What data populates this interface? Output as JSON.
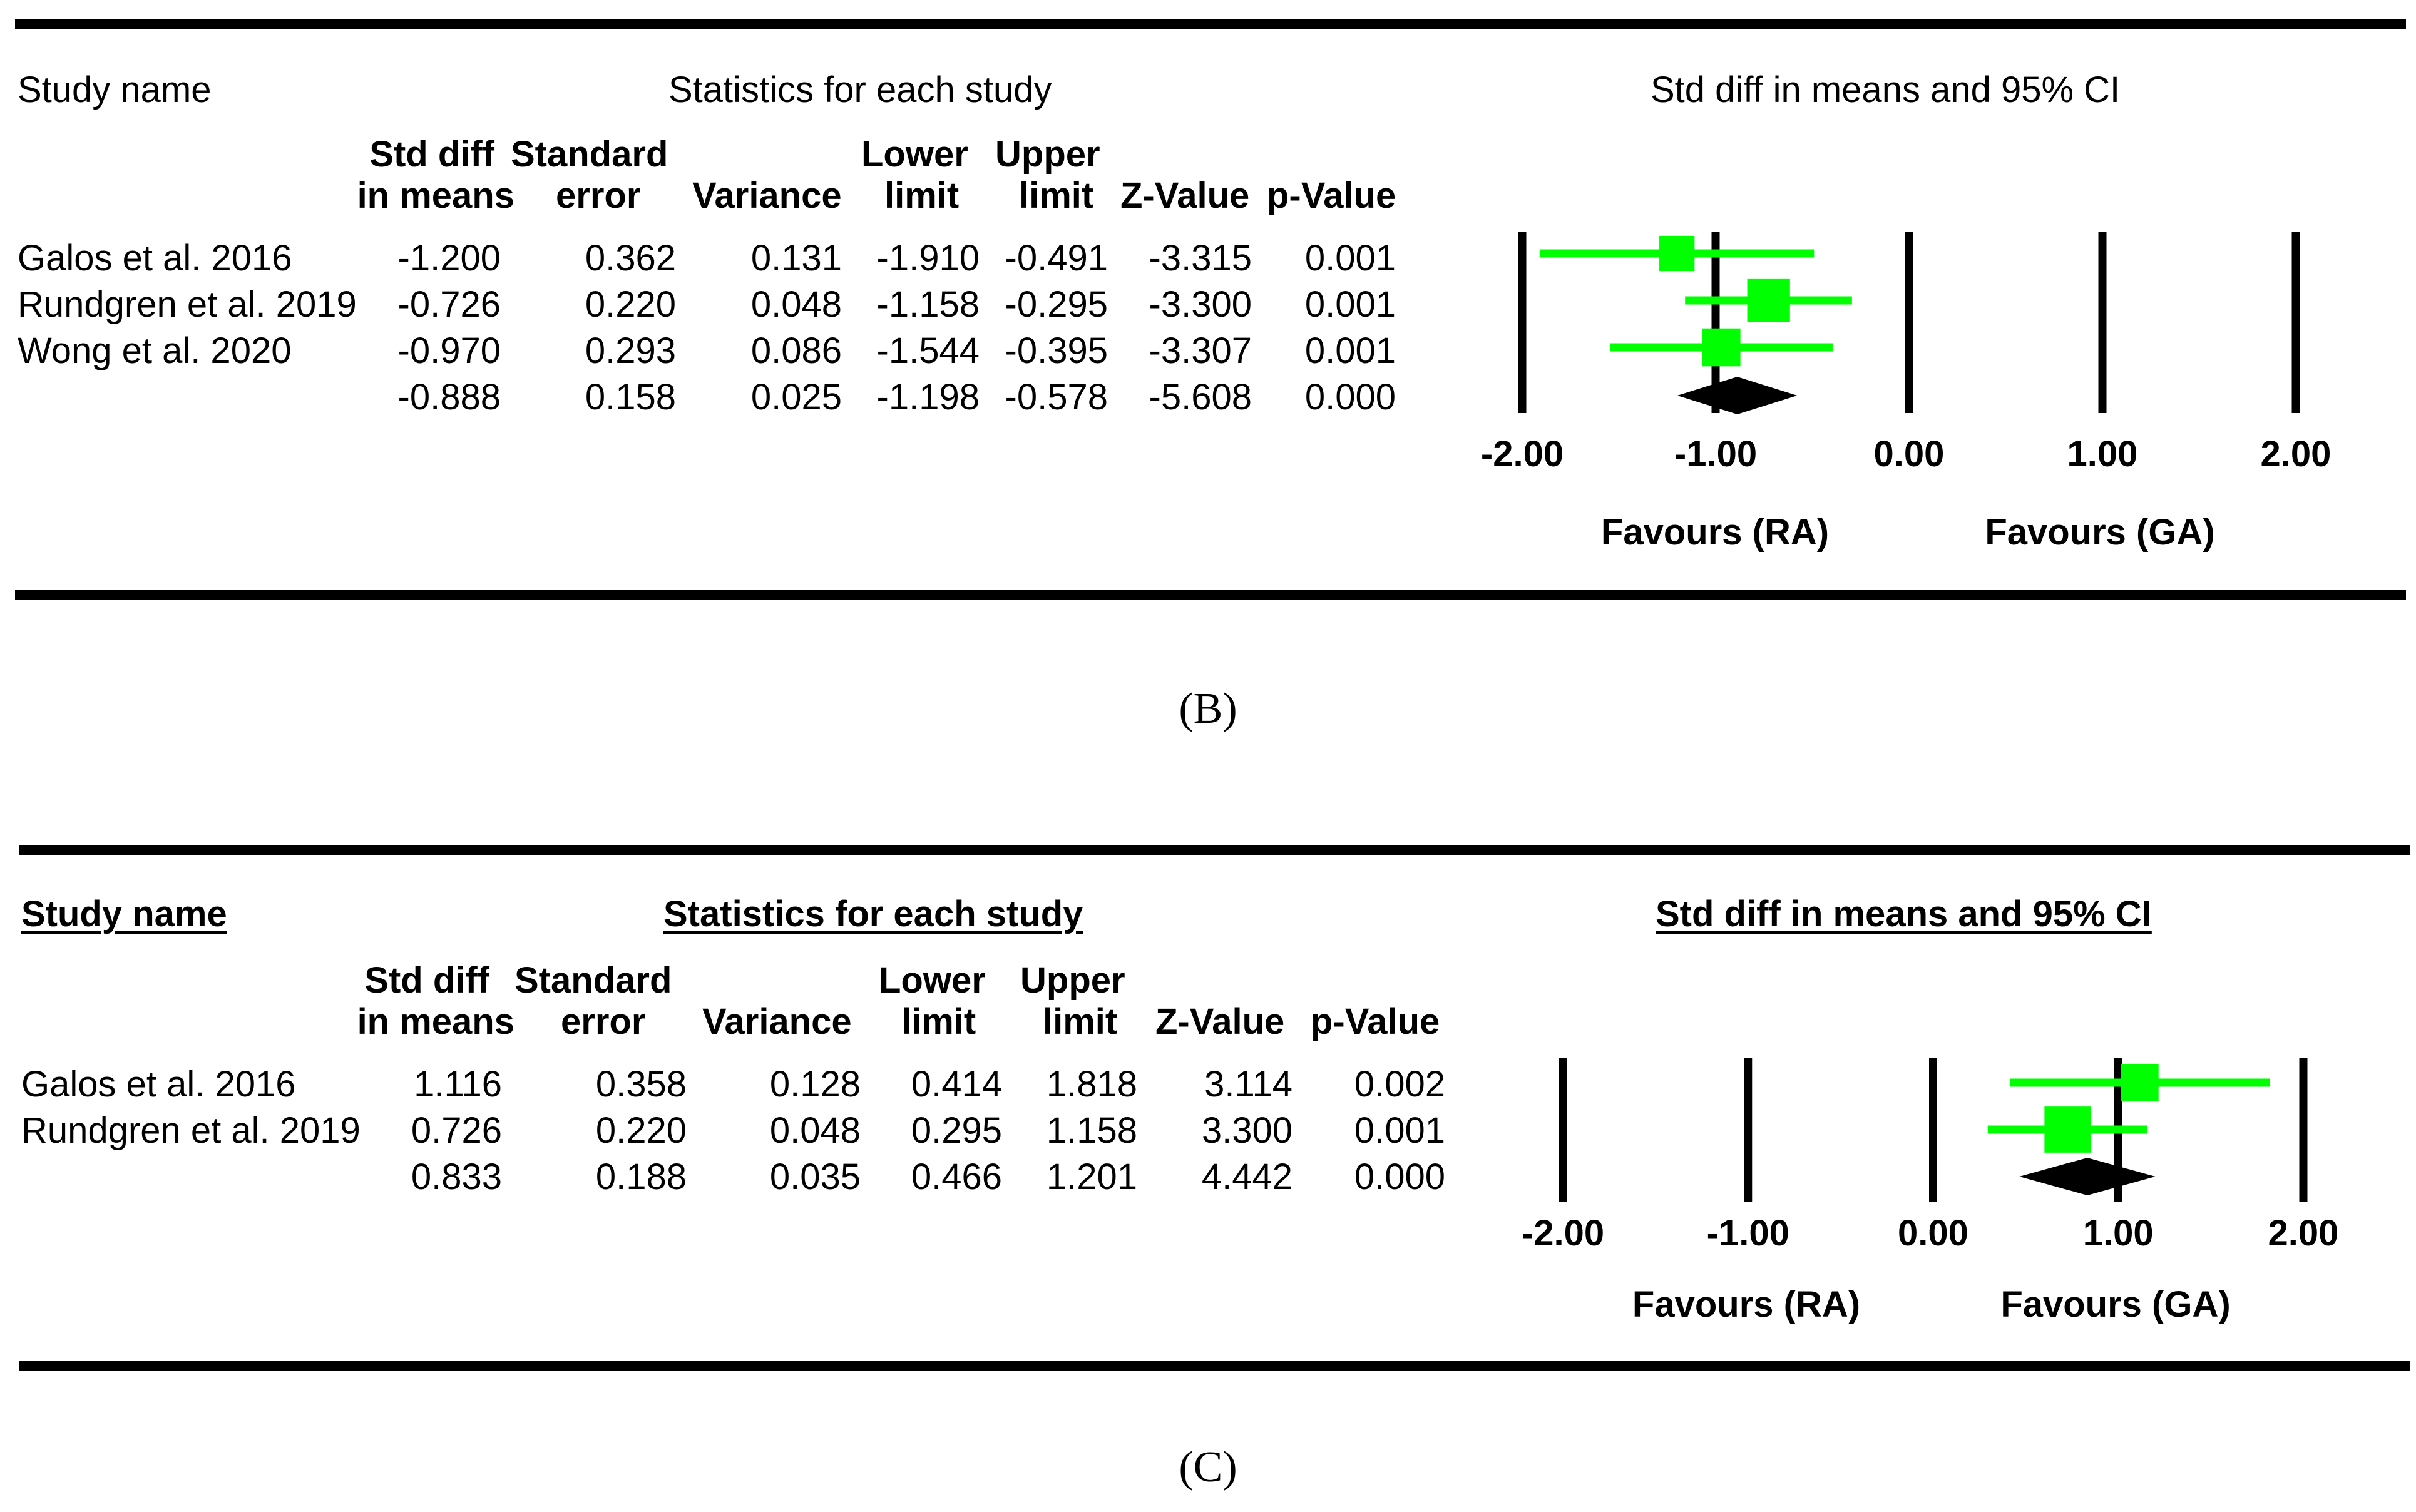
{
  "panels": [
    {
      "id": "B",
      "headers": {
        "study_name": "Study name",
        "stats_title": "Statistics for each study",
        "plot_title": "Std diff in means and 95% CI",
        "col_std_diff": [
          "Std diff",
          "in means"
        ],
        "col_se": [
          "Standard",
          "error"
        ],
        "col_variance": "Variance",
        "col_lower": [
          "Lower",
          "limit"
        ],
        "col_upper": [
          "Upper",
          "limit"
        ],
        "col_z": "Z-Value",
        "col_p": "p-Value"
      },
      "rows": [
        {
          "study": "Galos et al. 2016",
          "std_diff": "-1.200",
          "se": "0.362",
          "variance": "0.131",
          "lower": "-1.910",
          "upper": "-0.491",
          "z": "-3.315",
          "p": "0.001"
        },
        {
          "study": "Rundgren et al. 2019",
          "std_diff": "-0.726",
          "se": "0.220",
          "variance": "0.048",
          "lower": "-1.158",
          "upper": "-0.295",
          "z": "-3.300",
          "p": "0.001"
        },
        {
          "study": "Wong et al. 2020",
          "std_diff": "-0.970",
          "se": "0.293",
          "variance": "0.086",
          "lower": "-1.544",
          "upper": "-0.395",
          "z": "-3.307",
          "p": "0.001"
        }
      ],
      "summary": {
        "study": "",
        "std_diff": "-0.888",
        "se": "0.158",
        "variance": "0.025",
        "lower": "-1.198",
        "upper": "-0.578",
        "z": "-5.608",
        "p": "0.000"
      },
      "favours_left": "Favours (RA)",
      "favours_right": "Favours (GA)",
      "caption": "(B)"
    },
    {
      "id": "C",
      "headers": {
        "study_name": "Study name",
        "stats_title": "Statistics for each study",
        "plot_title": "Std diff in means and 95% CI",
        "col_std_diff": [
          "Std diff",
          "in means"
        ],
        "col_se": [
          "Standard",
          "error"
        ],
        "col_variance": "Variance",
        "col_lower": [
          "Lower",
          "limit"
        ],
        "col_upper": [
          "Upper",
          "limit"
        ],
        "col_z": "Z-Value",
        "col_p": "p-Value"
      },
      "rows": [
        {
          "study": "Galos et al. 2016",
          "std_diff": "1.116",
          "se": "0.358",
          "variance": "0.128",
          "lower": "0.414",
          "upper": "1.818",
          "z": "3.114",
          "p": "0.002"
        },
        {
          "study": "Rundgren et al. 2019",
          "std_diff": "0.726",
          "se": "0.220",
          "variance": "0.048",
          "lower": "0.295",
          "upper": "1.158",
          "z": "3.300",
          "p": "0.001"
        }
      ],
      "summary": {
        "study": "",
        "std_diff": "0.833",
        "se": "0.188",
        "variance": "0.035",
        "lower": "0.466",
        "upper": "1.201",
        "z": "4.442",
        "p": "0.000"
      },
      "favours_left": "Favours (RA)",
      "favours_right": "Favours (GA)",
      "caption": "(C)"
    }
  ],
  "chart_data": [
    {
      "type": "forest",
      "panel": "B",
      "title": "Std diff in means and 95% CI",
      "xlim": [
        -2,
        2
      ],
      "ticks": [
        -2,
        -1,
        0,
        1,
        2
      ],
      "tick_labels": [
        "-2.00",
        "-1.00",
        "0.00",
        "1.00",
        "2.00"
      ],
      "studies": [
        {
          "name": "Galos et al. 2016",
          "estimate": -1.2,
          "lower": -1.91,
          "upper": -0.491,
          "weight": 0.19
        },
        {
          "name": "Rundgren et al. 2019",
          "estimate": -0.726,
          "lower": -1.158,
          "upper": -0.295,
          "weight": 0.52
        },
        {
          "name": "Wong et al. 2020",
          "estimate": -0.97,
          "lower": -1.544,
          "upper": -0.395,
          "weight": 0.29
        }
      ],
      "summary": {
        "estimate": -0.888,
        "lower": -1.198,
        "upper": -0.578
      },
      "marker_color": "#00ff00",
      "summary_color": "#000000"
    },
    {
      "type": "forest",
      "panel": "C",
      "title": "Std diff in means and 95% CI",
      "xlim": [
        -2,
        2
      ],
      "ticks": [
        -2,
        -1,
        0,
        1,
        2
      ],
      "tick_labels": [
        "-2.00",
        "-1.00",
        "0.00",
        "1.00",
        "2.00"
      ],
      "studies": [
        {
          "name": "Galos et al. 2016",
          "estimate": 1.116,
          "lower": 0.414,
          "upper": 1.818,
          "weight": 0.28
        },
        {
          "name": "Rundgren et al. 2019",
          "estimate": 0.726,
          "lower": 0.295,
          "upper": 1.158,
          "weight": 0.72
        }
      ],
      "summary": {
        "estimate": 0.833,
        "lower": 0.466,
        "upper": 1.201
      },
      "marker_color": "#00ff00",
      "summary_color": "#000000"
    }
  ]
}
